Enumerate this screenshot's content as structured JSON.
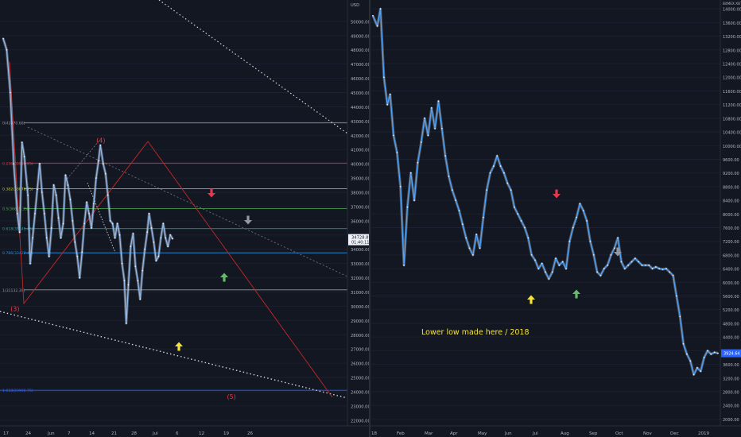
{
  "chart_data": [
    {
      "type": "line",
      "price_axis": {
        "ticks": [
          "50000.00",
          "49000.00",
          "48000.00",
          "47000.00",
          "46000.00",
          "45000.00",
          "44000.00",
          "43000.00",
          "42000.00",
          "41000.00",
          "40000.00",
          "39000.00",
          "38000.00",
          "37000.00",
          "36000.00",
          "35000.00",
          "34000.00",
          "33000.00",
          "32000.00",
          "31000.00",
          "30000.00",
          "29000.00",
          "28000.00",
          "27000.00",
          "26000.00",
          "25000.00",
          "24000.00",
          "23000.00",
          "22000.00"
        ],
        "range": [
          21600,
          51500
        ],
        "header": "USD",
        "last_price": "34728.89",
        "last_price_sub": "01:40:11"
      },
      "x_axis": {
        "ticks": [
          "17",
          "24",
          "Jun",
          "7",
          "14",
          "21",
          "28",
          "Jul",
          "6",
          "12",
          "19",
          "26"
        ]
      },
      "x_range": [
        0,
        100
      ],
      "fib_levels": [
        {
          "label": "0(42870.68)",
          "price": 42870,
          "color": "#9598a1"
        },
        {
          "label": "0.236(39960.25)",
          "price": 40050,
          "color": "#f23645"
        },
        {
          "label": "0.382(38078.75)",
          "price": 38250,
          "color": "#c0ca33"
        },
        {
          "label": "0.5(36605.35)",
          "price": 36850,
          "color": "#4caf50"
        },
        {
          "label": "0.618(35141.45)",
          "price": 35450,
          "color": "#26a69a"
        },
        {
          "label": "0.786(33422.48)",
          "price": 33750,
          "color": "#2196f3"
        },
        {
          "label": "1(31132.39)",
          "price": 31150,
          "color": "#9598a1"
        },
        {
          "label": "1.618(23906.75)",
          "price": 24100,
          "color": "#2962ff"
        }
      ],
      "wave_labels": [
        {
          "text": "(4)",
          "x": 41.5,
          "price": 41500
        },
        {
          "text": "(3)",
          "x": 5,
          "price": 29650
        },
        {
          "text": "(5)",
          "x": 97,
          "price": 23500
        }
      ],
      "series": [
        {
          "values": [
            {
              "x": 0,
              "y": 48800
            },
            {
              "x": 1.5,
              "y": 48000
            },
            {
              "x": 3,
              "y": 45000
            },
            {
              "x": 4.5,
              "y": 40000
            },
            {
              "x": 6,
              "y": 36500
            },
            {
              "x": 7,
              "y": 35200
            },
            {
              "x": 8,
              "y": 41500
            },
            {
              "x": 9,
              "y": 40500
            },
            {
              "x": 10.5,
              "y": 37800
            },
            {
              "x": 11.5,
              "y": 33000
            },
            {
              "x": 12.5,
              "y": 34800
            },
            {
              "x": 13.5,
              "y": 36500
            },
            {
              "x": 14.5,
              "y": 38200
            },
            {
              "x": 15.5,
              "y": 40000
            },
            {
              "x": 16.5,
              "y": 38000
            },
            {
              "x": 17.5,
              "y": 36500
            },
            {
              "x": 18.5,
              "y": 34800
            },
            {
              "x": 19.5,
              "y": 33500
            },
            {
              "x": 20.5,
              "y": 35500
            },
            {
              "x": 21.5,
              "y": 38500
            },
            {
              "x": 22.5,
              "y": 37800
            },
            {
              "x": 23.5,
              "y": 36200
            },
            {
              "x": 24.5,
              "y": 34800
            },
            {
              "x": 25.5,
              "y": 35800
            },
            {
              "x": 26.5,
              "y": 39200
            },
            {
              "x": 27.5,
              "y": 38500
            },
            {
              "x": 28.5,
              "y": 37500
            },
            {
              "x": 29.5,
              "y": 36000
            },
            {
              "x": 30.5,
              "y": 34500
            },
            {
              "x": 31.5,
              "y": 33500
            },
            {
              "x": 32.5,
              "y": 32000
            },
            {
              "x": 33.5,
              "y": 33800
            },
            {
              "x": 34.5,
              "y": 35800
            },
            {
              "x": 35.5,
              "y": 37300
            },
            {
              "x": 36.5,
              "y": 36500
            },
            {
              "x": 37.5,
              "y": 35500
            },
            {
              "x": 38.5,
              "y": 37200
            },
            {
              "x": 39.5,
              "y": 39000
            },
            {
              "x": 40.5,
              "y": 40200
            },
            {
              "x": 41.3,
              "y": 41300
            },
            {
              "x": 42.5,
              "y": 40000
            },
            {
              "x": 43.5,
              "y": 39300
            },
            {
              "x": 44.5,
              "y": 37800
            },
            {
              "x": 45.5,
              "y": 36000
            },
            {
              "x": 46.5,
              "y": 35800
            },
            {
              "x": 47.5,
              "y": 34800
            },
            {
              "x": 48.5,
              "y": 35800
            },
            {
              "x": 49.5,
              "y": 35000
            },
            {
              "x": 50.5,
              "y": 33000
            },
            {
              "x": 51.5,
              "y": 31800
            },
            {
              "x": 52.3,
              "y": 28800
            },
            {
              "x": 53.2,
              "y": 31500
            },
            {
              "x": 54.2,
              "y": 34200
            },
            {
              "x": 55.2,
              "y": 35100
            },
            {
              "x": 56.2,
              "y": 32800
            },
            {
              "x": 57.2,
              "y": 31800
            },
            {
              "x": 58.2,
              "y": 30500
            },
            {
              "x": 59.2,
              "y": 32500
            },
            {
              "x": 60.2,
              "y": 34000
            },
            {
              "x": 61.2,
              "y": 35200
            },
            {
              "x": 62,
              "y": 36500
            },
            {
              "x": 63,
              "y": 35500
            },
            {
              "x": 64,
              "y": 34500
            },
            {
              "x": 65,
              "y": 33200
            },
            {
              "x": 66,
              "y": 33500
            },
            {
              "x": 67,
              "y": 34800
            },
            {
              "x": 68,
              "y": 35800
            },
            {
              "x": 69,
              "y": 34800
            },
            {
              "x": 70,
              "y": 34200
            },
            {
              "x": 71,
              "y": 35000
            },
            {
              "x": 72,
              "y": 34728
            }
          ]
        }
      ]
    },
    {
      "type": "line",
      "price_axis": {
        "ticks": [
          "14000.00",
          "13600.00",
          "13200.00",
          "12800.00",
          "12400.00",
          "12000.00",
          "11600.00",
          "11200.00",
          "10800.00",
          "10400.00",
          "10000.00",
          "9600.00",
          "9200.00",
          "8800.00",
          "8400.00",
          "8000.00",
          "7600.00",
          "7200.00",
          "6800.00",
          "6400.00",
          "6000.00",
          "5600.00",
          "5200.00",
          "4800.00",
          "4400.00",
          "4000.00",
          "3600.00",
          "3200.00",
          "2800.00",
          "2400.00",
          "2000.00"
        ],
        "range": [
          1800,
          14260
        ],
        "header": "BitMEX:XBTUSD (USD)",
        "last_price": "3924.64"
      },
      "x_axis": {
        "ticks": [
          "18",
          "Feb",
          "Mar",
          "Apr",
          "May",
          "Jun",
          "Jul",
          "Aug",
          "Sep",
          "Oct",
          "Nov",
          "Dec",
          "2019"
        ]
      },
      "x_range": [
        0,
        100
      ],
      "annotation": "Lower low made here / 2018",
      "series": [
        {
          "values": [
            {
              "x": 0,
              "y": 13800
            },
            {
              "x": 1.3,
              "y": 13500
            },
            {
              "x": 2.2,
              "y": 14000
            },
            {
              "x": 3.2,
              "y": 12000
            },
            {
              "x": 4.2,
              "y": 11200
            },
            {
              "x": 5,
              "y": 11500
            },
            {
              "x": 6,
              "y": 10300
            },
            {
              "x": 7,
              "y": 9800
            },
            {
              "x": 8,
              "y": 8800
            },
            {
              "x": 9,
              "y": 6500
            },
            {
              "x": 10,
              "y": 8200
            },
            {
              "x": 11,
              "y": 9200
            },
            {
              "x": 12,
              "y": 8400
            },
            {
              "x": 13,
              "y": 9500
            },
            {
              "x": 14,
              "y": 10100
            },
            {
              "x": 15,
              "y": 10800
            },
            {
              "x": 16,
              "y": 10300
            },
            {
              "x": 17,
              "y": 11100
            },
            {
              "x": 18,
              "y": 10500
            },
            {
              "x": 19,
              "y": 11300
            },
            {
              "x": 20,
              "y": 10500
            },
            {
              "x": 21,
              "y": 9700
            },
            {
              "x": 22,
              "y": 9100
            },
            {
              "x": 23,
              "y": 8700
            },
            {
              "x": 24,
              "y": 8400
            },
            {
              "x": 25,
              "y": 8100
            },
            {
              "x": 26,
              "y": 7700
            },
            {
              "x": 27,
              "y": 7300
            },
            {
              "x": 28,
              "y": 7000
            },
            {
              "x": 29,
              "y": 6800
            },
            {
              "x": 30,
              "y": 7400
            },
            {
              "x": 31,
              "y": 7000
            },
            {
              "x": 32,
              "y": 7900
            },
            {
              "x": 33,
              "y": 8700
            },
            {
              "x": 34,
              "y": 9200
            },
            {
              "x": 35,
              "y": 9400
            },
            {
              "x": 36,
              "y": 9700
            },
            {
              "x": 37,
              "y": 9400
            },
            {
              "x": 38,
              "y": 9200
            },
            {
              "x": 39,
              "y": 8900
            },
            {
              "x": 40,
              "y": 8700
            },
            {
              "x": 41,
              "y": 8200
            },
            {
              "x": 42,
              "y": 8000
            },
            {
              "x": 43,
              "y": 7800
            },
            {
              "x": 44,
              "y": 7600
            },
            {
              "x": 45,
              "y": 7300
            },
            {
              "x": 46,
              "y": 6800
            },
            {
              "x": 47,
              "y": 6650
            },
            {
              "x": 48,
              "y": 6400
            },
            {
              "x": 49,
              "y": 6550
            },
            {
              "x": 50,
              "y": 6300
            },
            {
              "x": 51,
              "y": 6100
            },
            {
              "x": 52,
              "y": 6300
            },
            {
              "x": 53,
              "y": 6700
            },
            {
              "x": 54,
              "y": 6500
            },
            {
              "x": 55,
              "y": 6600
            },
            {
              "x": 56,
              "y": 6400
            },
            {
              "x": 57,
              "y": 7200
            },
            {
              "x": 58,
              "y": 7600
            },
            {
              "x": 59,
              "y": 7900
            },
            {
              "x": 60,
              "y": 8300
            },
            {
              "x": 61,
              "y": 8100
            },
            {
              "x": 62,
              "y": 7800
            },
            {
              "x": 63,
              "y": 7200
            },
            {
              "x": 64,
              "y": 6800
            },
            {
              "x": 65,
              "y": 6300
            },
            {
              "x": 66,
              "y": 6200
            },
            {
              "x": 67,
              "y": 6400
            },
            {
              "x": 68,
              "y": 6500
            },
            {
              "x": 69,
              "y": 6800
            },
            {
              "x": 70,
              "y": 7000
            },
            {
              "x": 71,
              "y": 7300
            },
            {
              "x": 72,
              "y": 6600
            },
            {
              "x": 73,
              "y": 6400
            },
            {
              "x": 74,
              "y": 6500
            },
            {
              "x": 75,
              "y": 6600
            },
            {
              "x": 76,
              "y": 6700
            },
            {
              "x": 77,
              "y": 6600
            },
            {
              "x": 78,
              "y": 6500
            },
            {
              "x": 79,
              "y": 6500
            },
            {
              "x": 80,
              "y": 6500
            },
            {
              "x": 81,
              "y": 6400
            },
            {
              "x": 82,
              "y": 6450
            },
            {
              "x": 83,
              "y": 6400
            },
            {
              "x": 84,
              "y": 6380
            },
            {
              "x": 85,
              "y": 6400
            },
            {
              "x": 86,
              "y": 6300
            },
            {
              "x": 87,
              "y": 6200
            },
            {
              "x": 88,
              "y": 5600
            },
            {
              "x": 89,
              "y": 5000
            },
            {
              "x": 90,
              "y": 4200
            },
            {
              "x": 91,
              "y": 3900
            },
            {
              "x": 92,
              "y": 3700
            },
            {
              "x": 93,
              "y": 3300
            },
            {
              "x": 94,
              "y": 3500
            },
            {
              "x": 95,
              "y": 3400
            },
            {
              "x": 96,
              "y": 3800
            },
            {
              "x": 97,
              "y": 4000
            },
            {
              "x": 98,
              "y": 3900
            },
            {
              "x": 99,
              "y": 3950
            },
            {
              "x": 100,
              "y": 3924
            }
          ]
        }
      ]
    }
  ]
}
